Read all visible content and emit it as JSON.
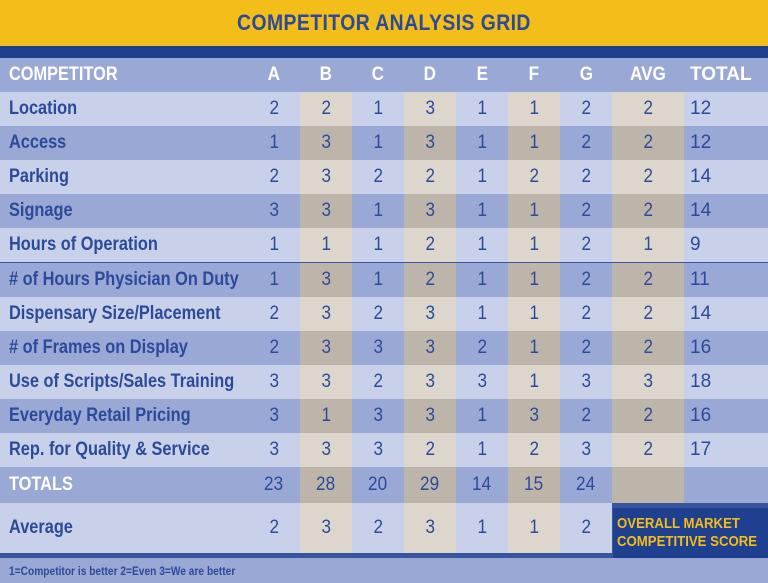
{
  "title": "COMPETITOR ANALYSIS GRID",
  "columns": [
    "COMPETITOR",
    "A",
    "B",
    "C",
    "D",
    "E",
    "F",
    "G",
    "AVG",
    "TOTAL"
  ],
  "rows": [
    {
      "label": "Location",
      "values": [
        "2",
        "2",
        "1",
        "3",
        "1",
        "1",
        "2",
        "2",
        "12"
      ]
    },
    {
      "label": "Access",
      "values": [
        "1",
        "3",
        "1",
        "3",
        "1",
        "1",
        "2",
        "2",
        "12"
      ]
    },
    {
      "label": "Parking",
      "values": [
        "2",
        "3",
        "2",
        "2",
        "1",
        "2",
        "2",
        "2",
        "14"
      ]
    },
    {
      "label": "Signage",
      "values": [
        "3",
        "3",
        "1",
        "3",
        "1",
        "1",
        "2",
        "2",
        "14"
      ]
    },
    {
      "label": "Hours of Operation",
      "values": [
        "1",
        "1",
        "1",
        "2",
        "1",
        "1",
        "2",
        "1",
        "9"
      ]
    },
    {
      "label": "# of Hours Physician On Duty",
      "values": [
        "1",
        "3",
        "1",
        "2",
        "1",
        "1",
        "2",
        "2",
        "11"
      ]
    },
    {
      "label": "Dispensary Size/Placement",
      "values": [
        "2",
        "3",
        "2",
        "3",
        "1",
        "1",
        "2",
        "2",
        "14"
      ]
    },
    {
      "label": "# of Frames on Display",
      "values": [
        "2",
        "3",
        "3",
        "3",
        "2",
        "1",
        "2",
        "2",
        "16"
      ]
    },
    {
      "label": "Use of Scripts/Sales Training",
      "values": [
        "3",
        "3",
        "2",
        "3",
        "3",
        "1",
        "3",
        "3",
        "18"
      ]
    },
    {
      "label": "Everyday Retail Pricing",
      "values": [
        "3",
        "1",
        "3",
        "3",
        "1",
        "3",
        "2",
        "2",
        "16"
      ]
    },
    {
      "label": "Rep. for Quality & Service",
      "values": [
        "3",
        "3",
        "3",
        "2",
        "1",
        "2",
        "3",
        "2",
        "17"
      ]
    }
  ],
  "totals": {
    "label": "TOTALS",
    "values": [
      "23",
      "28",
      "20",
      "29",
      "14",
      "15",
      "24",
      "",
      ""
    ]
  },
  "average": {
    "label": "Average",
    "values": [
      "2",
      "3",
      "2",
      "3",
      "1",
      "1",
      "2"
    ]
  },
  "score_box": {
    "line1": "OVERALL MARKET",
    "line2": "COMPETITIVE SCORE"
  },
  "legend": "1=Competitor is better   2=Even   3=We are better",
  "colors": {
    "title_bg": "#f3bd1a",
    "title_text": "#2b4a9a",
    "stripe": "#1f3f8f",
    "label_light": "#c9d0ea",
    "label_dark": "#9aa8d6",
    "cell_light": "#ddd6cc",
    "cell_dark": "#bdb5a9",
    "header_bg": "#9aa8d6"
  }
}
